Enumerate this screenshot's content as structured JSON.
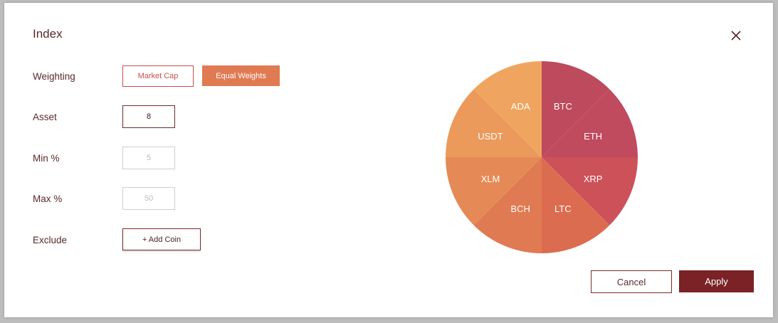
{
  "dialog": {
    "title": "Index",
    "close_icon": "close-icon"
  },
  "form": {
    "weighting": {
      "label": "Weighting",
      "options": [
        "Market Cap",
        "Equal Weights"
      ],
      "selected": "Equal Weights"
    },
    "asset": {
      "label": "Asset",
      "value": "8"
    },
    "min": {
      "label": "Min %",
      "placeholder": "5"
    },
    "max": {
      "label": "Max %",
      "placeholder": "50"
    },
    "exclude": {
      "label": "Exclude",
      "button_label": "+ Add Coin"
    }
  },
  "footer": {
    "cancel_label": "Cancel",
    "apply_label": "Apply"
  },
  "colors": {
    "accent_dark": "#7a2225",
    "accent_orange": "#e07a52",
    "accent_red": "#c94e4e"
  },
  "chart_data": {
    "type": "pie",
    "title": "",
    "slices": [
      {
        "label": "BTC",
        "value": 12.5,
        "color": "#bd4a5d"
      },
      {
        "label": "ETH",
        "value": 12.5,
        "color": "#c04a5e"
      },
      {
        "label": "XRP",
        "value": 12.5,
        "color": "#cc5158"
      },
      {
        "label": "LTC",
        "value": 12.5,
        "color": "#dc6c50"
      },
      {
        "label": "BCH",
        "value": 12.5,
        "color": "#e07a52"
      },
      {
        "label": "XLM",
        "value": 12.5,
        "color": "#e58a56"
      },
      {
        "label": "USDT",
        "value": 12.5,
        "color": "#eb9a5c"
      },
      {
        "label": "ADA",
        "value": 12.5,
        "color": "#efa560"
      }
    ]
  }
}
